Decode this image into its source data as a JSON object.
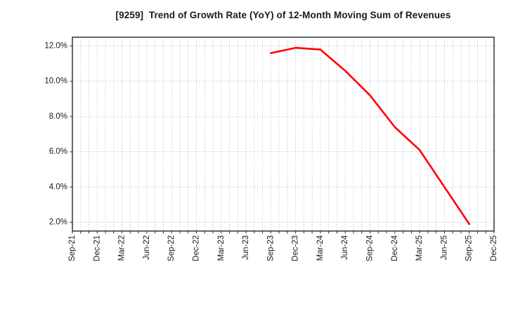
{
  "page": {
    "background": "#ffffff"
  },
  "chart_data": {
    "type": "line",
    "title": "[9259]  Trend of Growth Rate (YoY) of 12-Month Moving Sum of Revenues",
    "xlabel": "",
    "ylabel": "",
    "x_tick_labels": [
      "Sep-21",
      "Dec-21",
      "Mar-22",
      "Jun-22",
      "Sep-22",
      "Dec-22",
      "Mar-23",
      "Jun-23",
      "Sep-23",
      "Dec-23",
      "Mar-24",
      "Jun-24",
      "Sep-24",
      "Dec-24",
      "Mar-25",
      "Jun-25",
      "Sep-25",
      "Dec-25"
    ],
    "x_tick_month_indices": [
      0,
      3,
      6,
      9,
      12,
      15,
      18,
      21,
      24,
      27,
      30,
      33,
      36,
      39,
      42,
      45,
      48,
      51
    ],
    "months_total": 51,
    "y_ticks": [
      2,
      4,
      6,
      8,
      10,
      12
    ],
    "y_tick_labels": [
      "2.0%",
      "4.0%",
      "6.0%",
      "8.0%",
      "10.0%",
      "12.0%"
    ],
    "ylim": [
      1.5,
      12.5
    ],
    "grid": "dotted",
    "minor_vertical_grid": "monthly",
    "legend_position": "none",
    "series": [
      {
        "name": "Growth Rate (YoY) of 12-Month Moving Sum of Revenues",
        "color": "#ff0000",
        "points": [
          {
            "x_label": "Sep-23",
            "month_index": 24,
            "value": 11.6
          },
          {
            "x_label": "Dec-23",
            "month_index": 27,
            "value": 11.9
          },
          {
            "x_label": "Mar-24",
            "month_index": 30,
            "value": 11.8
          },
          {
            "x_label": "Jun-24",
            "month_index": 33,
            "value": 10.6
          },
          {
            "x_label": "Sep-24",
            "month_index": 36,
            "value": 9.2
          },
          {
            "x_label": "Dec-24",
            "month_index": 39,
            "value": 7.4
          },
          {
            "x_label": "Mar-25",
            "month_index": 42,
            "value": 6.1
          },
          {
            "x_label": "Jun-25",
            "month_index": 45,
            "value": 4.0
          },
          {
            "x_label": "Sep-25",
            "month_index": 48,
            "value": 1.9
          }
        ]
      }
    ],
    "colors": {
      "line": "#ff0000",
      "grid": "#aaaaaa",
      "axis": "#262626",
      "text": "#1a1a1a",
      "background": "#ffffff"
    }
  }
}
